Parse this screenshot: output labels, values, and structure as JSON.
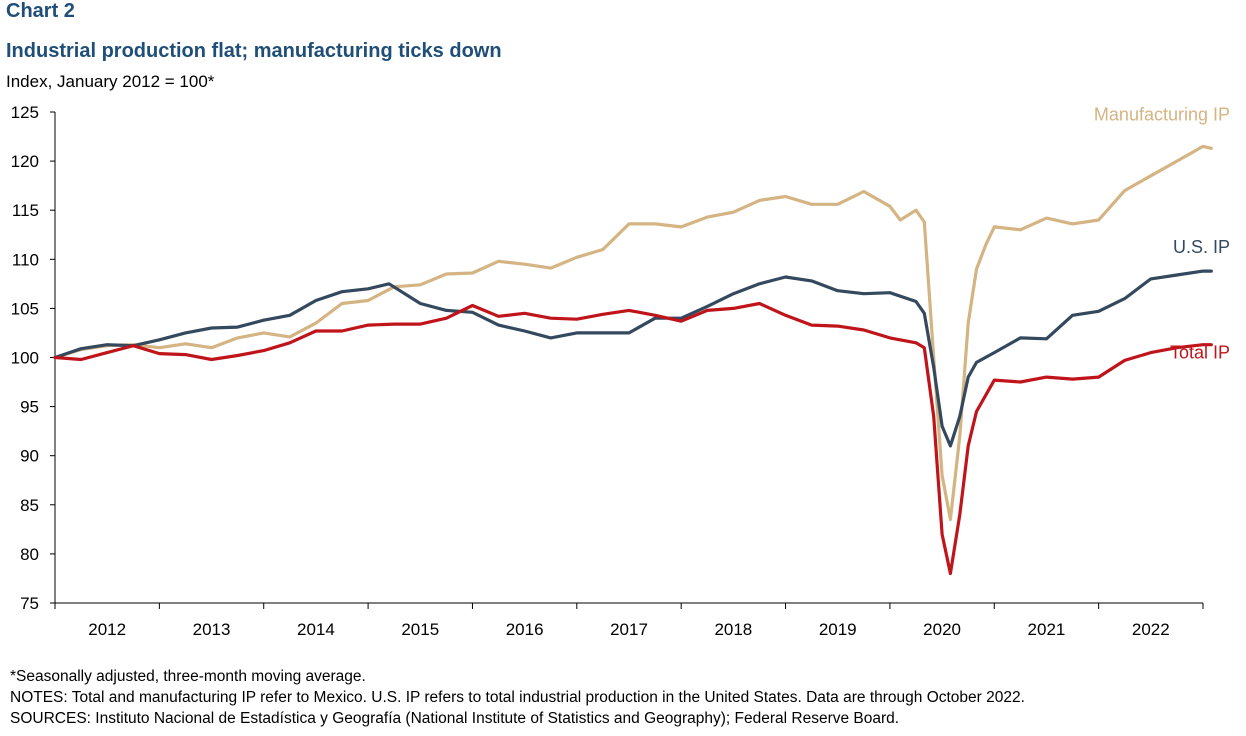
{
  "header": {
    "chart_label": "Chart 2",
    "title": "Industrial production flat; manufacturing ticks down",
    "subtitle": "Index, January 2012 = 100*"
  },
  "footer": {
    "footnote": "*Seasonally adjusted, three-month moving average.",
    "notes": "NOTES: Total and manufacturing IP refer to Mexico. U.S. IP refers to total industrial production in the United States. Data are through October 2022.",
    "sources": "SOURCES: Instituto Nacional de Estadística y Geografía (National Institute of Statistics and Geography); Federal Reserve Board."
  },
  "chart_data": {
    "type": "line",
    "title": "Industrial production flat; manufacturing ticks down",
    "ylabel": "Index, January 2012 = 100*",
    "xlabel": "",
    "ylim": [
      75,
      125
    ],
    "yticks": [
      75,
      80,
      85,
      90,
      95,
      100,
      105,
      110,
      115,
      120,
      125
    ],
    "xlim": [
      2012.0,
      2023.0
    ],
    "x_tick_labels": [
      "2012",
      "2013",
      "2014",
      "2015",
      "2016",
      "2017",
      "2018",
      "2019",
      "2020",
      "2021",
      "2022"
    ],
    "grid": false,
    "legend": "direct labels at right end of each series",
    "series": [
      {
        "name": "Manufacturing IP",
        "color": "#d4b483",
        "points": [
          [
            2012.0,
            100.0
          ],
          [
            2012.25,
            100.8
          ],
          [
            2012.5,
            101.2
          ],
          [
            2012.75,
            101.3
          ],
          [
            2013.0,
            101.0
          ],
          [
            2013.25,
            101.4
          ],
          [
            2013.5,
            101.0
          ],
          [
            2013.75,
            102.0
          ],
          [
            2014.0,
            102.5
          ],
          [
            2014.25,
            102.1
          ],
          [
            2014.5,
            103.5
          ],
          [
            2014.75,
            105.5
          ],
          [
            2015.0,
            105.8
          ],
          [
            2015.25,
            107.2
          ],
          [
            2015.5,
            107.4
          ],
          [
            2015.75,
            108.5
          ],
          [
            2016.0,
            108.6
          ],
          [
            2016.25,
            109.8
          ],
          [
            2016.5,
            109.5
          ],
          [
            2016.75,
            109.1
          ],
          [
            2017.0,
            110.2
          ],
          [
            2017.25,
            111.0
          ],
          [
            2017.5,
            113.6
          ],
          [
            2017.75,
            113.6
          ],
          [
            2018.0,
            113.3
          ],
          [
            2018.25,
            114.3
          ],
          [
            2018.5,
            114.8
          ],
          [
            2018.75,
            116.0
          ],
          [
            2019.0,
            116.4
          ],
          [
            2019.25,
            115.6
          ],
          [
            2019.5,
            115.6
          ],
          [
            2019.75,
            116.9
          ],
          [
            2020.0,
            115.4
          ],
          [
            2020.1,
            114.0
          ],
          [
            2020.25,
            115.0
          ],
          [
            2020.33,
            113.8
          ],
          [
            2020.42,
            100.0
          ],
          [
            2020.5,
            88.0
          ],
          [
            2020.58,
            83.5
          ],
          [
            2020.67,
            92.0
          ],
          [
            2020.75,
            103.5
          ],
          [
            2020.83,
            109.0
          ],
          [
            2020.92,
            111.5
          ],
          [
            2021.0,
            113.3
          ],
          [
            2021.25,
            113.0
          ],
          [
            2021.5,
            114.2
          ],
          [
            2021.75,
            113.6
          ],
          [
            2022.0,
            114.0
          ],
          [
            2022.25,
            117.0
          ],
          [
            2022.5,
            118.5
          ],
          [
            2022.75,
            120.0
          ],
          [
            2023.0,
            121.5
          ],
          [
            2023.08,
            121.3
          ]
        ]
      },
      {
        "name": "U.S. IP",
        "color": "#34495e",
        "points": [
          [
            2012.0,
            100.0
          ],
          [
            2012.25,
            100.9
          ],
          [
            2012.5,
            101.3
          ],
          [
            2012.75,
            101.2
          ],
          [
            2013.0,
            101.8
          ],
          [
            2013.25,
            102.5
          ],
          [
            2013.5,
            103.0
          ],
          [
            2013.75,
            103.1
          ],
          [
            2014.0,
            103.8
          ],
          [
            2014.25,
            104.3
          ],
          [
            2014.5,
            105.8
          ],
          [
            2014.75,
            106.7
          ],
          [
            2015.0,
            107.0
          ],
          [
            2015.2,
            107.5
          ],
          [
            2015.5,
            105.5
          ],
          [
            2015.75,
            104.8
          ],
          [
            2016.0,
            104.6
          ],
          [
            2016.25,
            103.3
          ],
          [
            2016.5,
            102.7
          ],
          [
            2016.75,
            102.0
          ],
          [
            2017.0,
            102.5
          ],
          [
            2017.25,
            102.5
          ],
          [
            2017.5,
            102.5
          ],
          [
            2017.75,
            104.0
          ],
          [
            2018.0,
            104.0
          ],
          [
            2018.25,
            105.2
          ],
          [
            2018.5,
            106.5
          ],
          [
            2018.75,
            107.5
          ],
          [
            2019.0,
            108.2
          ],
          [
            2019.25,
            107.8
          ],
          [
            2019.5,
            106.8
          ],
          [
            2019.75,
            106.5
          ],
          [
            2020.0,
            106.6
          ],
          [
            2020.25,
            105.7
          ],
          [
            2020.33,
            104.5
          ],
          [
            2020.42,
            99.0
          ],
          [
            2020.5,
            93.0
          ],
          [
            2020.58,
            91.0
          ],
          [
            2020.67,
            94.0
          ],
          [
            2020.75,
            98.0
          ],
          [
            2020.83,
            99.5
          ],
          [
            2021.0,
            100.5
          ],
          [
            2021.25,
            102.0
          ],
          [
            2021.5,
            101.9
          ],
          [
            2021.75,
            104.3
          ],
          [
            2022.0,
            104.7
          ],
          [
            2022.25,
            106.0
          ],
          [
            2022.5,
            108.0
          ],
          [
            2022.75,
            108.4
          ],
          [
            2023.0,
            108.8
          ],
          [
            2023.08,
            108.8
          ]
        ]
      },
      {
        "name": "Total IP",
        "color": "#c0141b",
        "points": [
          [
            2012.0,
            100.0
          ],
          [
            2012.25,
            99.8
          ],
          [
            2012.5,
            100.5
          ],
          [
            2012.75,
            101.2
          ],
          [
            2013.0,
            100.4
          ],
          [
            2013.25,
            100.3
          ],
          [
            2013.5,
            99.8
          ],
          [
            2013.75,
            100.2
          ],
          [
            2014.0,
            100.7
          ],
          [
            2014.25,
            101.5
          ],
          [
            2014.5,
            102.7
          ],
          [
            2014.75,
            102.7
          ],
          [
            2015.0,
            103.3
          ],
          [
            2015.25,
            103.4
          ],
          [
            2015.5,
            103.4
          ],
          [
            2015.75,
            104.0
          ],
          [
            2016.0,
            105.3
          ],
          [
            2016.25,
            104.2
          ],
          [
            2016.5,
            104.5
          ],
          [
            2016.75,
            104.0
          ],
          [
            2017.0,
            103.9
          ],
          [
            2017.25,
            104.4
          ],
          [
            2017.5,
            104.8
          ],
          [
            2017.75,
            104.3
          ],
          [
            2018.0,
            103.7
          ],
          [
            2018.25,
            104.8
          ],
          [
            2018.5,
            105.0
          ],
          [
            2018.75,
            105.5
          ],
          [
            2019.0,
            104.3
          ],
          [
            2019.25,
            103.3
          ],
          [
            2019.5,
            103.2
          ],
          [
            2019.75,
            102.8
          ],
          [
            2020.0,
            102.0
          ],
          [
            2020.25,
            101.5
          ],
          [
            2020.33,
            101.0
          ],
          [
            2020.42,
            94.0
          ],
          [
            2020.5,
            82.0
          ],
          [
            2020.58,
            78.0
          ],
          [
            2020.67,
            84.0
          ],
          [
            2020.75,
            91.0
          ],
          [
            2020.83,
            94.5
          ],
          [
            2021.0,
            97.7
          ],
          [
            2021.25,
            97.5
          ],
          [
            2021.5,
            98.0
          ],
          [
            2021.75,
            97.8
          ],
          [
            2022.0,
            98.0
          ],
          [
            2022.25,
            99.7
          ],
          [
            2022.5,
            100.5
          ],
          [
            2022.75,
            101.0
          ],
          [
            2023.0,
            101.3
          ],
          [
            2023.08,
            101.3
          ]
        ]
      }
    ]
  }
}
